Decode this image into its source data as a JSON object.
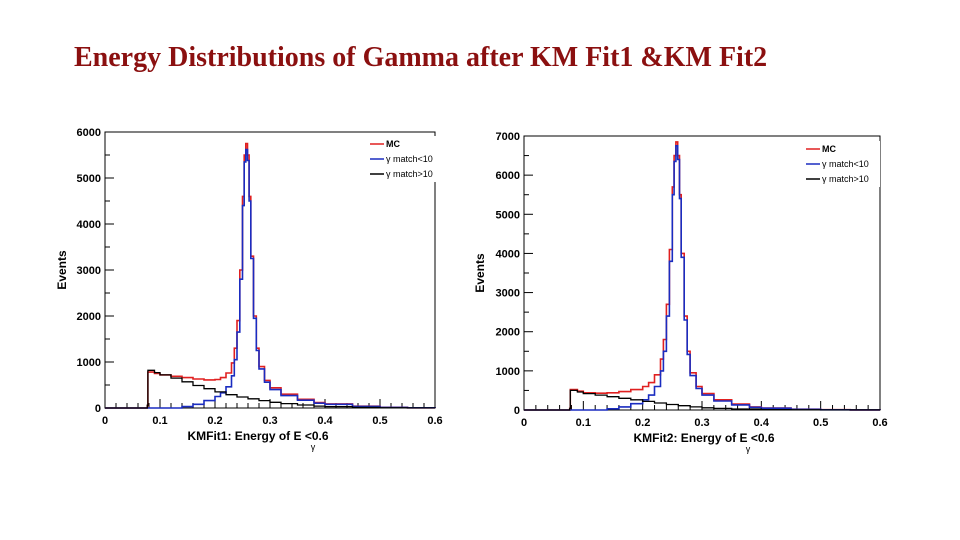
{
  "title": "Energy Distributions of Gamma after KM Fit1 &KM Fit2",
  "colors": {
    "title": "#8b1010",
    "mc": "#e02020",
    "match_lt10": "#1a2cc0",
    "match_gt10": "#000000"
  },
  "chart_data": [
    {
      "type": "line",
      "name": "kmfit1",
      "xlabel": "KMFit1:  Energy of E  <0.6",
      "xlabel_subscript": "γ",
      "ylabel": "Events",
      "xlim": [
        0,
        0.6
      ],
      "ylim": [
        0,
        6000
      ],
      "xticks": [
        0,
        0.1,
        0.2,
        0.3,
        0.4,
        0.5,
        0.6
      ],
      "xtick_labels": [
        "0",
        "0.1",
        "0.2",
        "0.3",
        "0.4",
        "0.5",
        "0.6"
      ],
      "yticks": [
        0,
        1000,
        2000,
        3000,
        4000,
        5000,
        6000
      ],
      "ytick_labels": [
        "0",
        "1000",
        "2000",
        "3000",
        "4000",
        "5000",
        "6000"
      ],
      "legend_position": "top-right",
      "series": [
        {
          "name": "MC",
          "legend_label": "MC",
          "color": "#e02020",
          "points": [
            [
              0,
              0
            ],
            [
              0.075,
              0
            ],
            [
              0.077,
              50
            ],
            [
              0.078,
              780
            ],
            [
              0.09,
              750
            ],
            [
              0.1,
              720
            ],
            [
              0.12,
              690
            ],
            [
              0.14,
              660
            ],
            [
              0.16,
              630
            ],
            [
              0.18,
              610
            ],
            [
              0.2,
              620
            ],
            [
              0.21,
              660
            ],
            [
              0.22,
              760
            ],
            [
              0.23,
              980
            ],
            [
              0.235,
              1300
            ],
            [
              0.24,
              1900
            ],
            [
              0.245,
              3000
            ],
            [
              0.25,
              4600
            ],
            [
              0.253,
              5500
            ],
            [
              0.256,
              5750
            ],
            [
              0.259,
              5500
            ],
            [
              0.262,
              4600
            ],
            [
              0.265,
              3300
            ],
            [
              0.27,
              2000
            ],
            [
              0.275,
              1300
            ],
            [
              0.28,
              900
            ],
            [
              0.29,
              600
            ],
            [
              0.3,
              440
            ],
            [
              0.32,
              300
            ],
            [
              0.35,
              190
            ],
            [
              0.38,
              120
            ],
            [
              0.4,
              90
            ],
            [
              0.45,
              40
            ],
            [
              0.5,
              15
            ],
            [
              0.55,
              5
            ],
            [
              0.6,
              0
            ]
          ]
        },
        {
          "name": "γ match<10",
          "legend_label": "γ match<10",
          "color": "#1a2cc0",
          "points": [
            [
              0,
              0
            ],
            [
              0.12,
              0
            ],
            [
              0.14,
              30
            ],
            [
              0.16,
              80
            ],
            [
              0.18,
              160
            ],
            [
              0.2,
              250
            ],
            [
              0.21,
              330
            ],
            [
              0.22,
              460
            ],
            [
              0.23,
              700
            ],
            [
              0.235,
              1050
            ],
            [
              0.24,
              1650
            ],
            [
              0.245,
              2800
            ],
            [
              0.25,
              4400
            ],
            [
              0.253,
              5350
            ],
            [
              0.256,
              5620
            ],
            [
              0.259,
              5380
            ],
            [
              0.262,
              4500
            ],
            [
              0.265,
              3250
            ],
            [
              0.27,
              1950
            ],
            [
              0.275,
              1250
            ],
            [
              0.28,
              850
            ],
            [
              0.29,
              560
            ],
            [
              0.3,
              400
            ],
            [
              0.32,
              270
            ],
            [
              0.35,
              170
            ],
            [
              0.38,
              105
            ],
            [
              0.4,
              80
            ],
            [
              0.45,
              35
            ],
            [
              0.5,
              12
            ],
            [
              0.55,
              4
            ],
            [
              0.6,
              0
            ]
          ]
        },
        {
          "name": "γ match>10",
          "legend_label": "γ match>10",
          "color": "#000000",
          "points": [
            [
              0,
              0
            ],
            [
              0.075,
              0
            ],
            [
              0.077,
              60
            ],
            [
              0.078,
              820
            ],
            [
              0.09,
              770
            ],
            [
              0.1,
              720
            ],
            [
              0.12,
              650
            ],
            [
              0.14,
              570
            ],
            [
              0.16,
              490
            ],
            [
              0.18,
              420
            ],
            [
              0.2,
              350
            ],
            [
              0.22,
              290
            ],
            [
              0.24,
              240
            ],
            [
              0.26,
              200
            ],
            [
              0.28,
              160
            ],
            [
              0.3,
              125
            ],
            [
              0.32,
              95
            ],
            [
              0.35,
              65
            ],
            [
              0.38,
              42
            ],
            [
              0.4,
              30
            ],
            [
              0.45,
              14
            ],
            [
              0.5,
              5
            ],
            [
              0.55,
              2
            ],
            [
              0.6,
              0
            ]
          ]
        }
      ]
    },
    {
      "type": "line",
      "name": "kmfit2",
      "xlabel": "KMFit2:  Energy of E  <0.6",
      "xlabel_subscript": "γ",
      "ylabel": "Events",
      "xlim": [
        0,
        0.6
      ],
      "ylim": [
        0,
        7000
      ],
      "xticks": [
        0,
        0.1,
        0.2,
        0.3,
        0.4,
        0.5,
        0.6
      ],
      "xtick_labels": [
        "0",
        "0.1",
        "0.2",
        "0.3",
        "0.4",
        "0.5",
        "0.6"
      ],
      "yticks": [
        0,
        1000,
        2000,
        3000,
        4000,
        5000,
        6000,
        7000
      ],
      "ytick_labels": [
        "0",
        "1000",
        "2000",
        "3000",
        "4000",
        "5000",
        "6000",
        "7000"
      ],
      "legend_position": "top-right",
      "series": [
        {
          "name": "MC",
          "legend_label": "MC",
          "color": "#e02020",
          "points": [
            [
              0,
              0
            ],
            [
              0.075,
              0
            ],
            [
              0.077,
              40
            ],
            [
              0.078,
              520
            ],
            [
              0.09,
              480
            ],
            [
              0.1,
              440
            ],
            [
              0.12,
              430
            ],
            [
              0.14,
              440
            ],
            [
              0.16,
              470
            ],
            [
              0.18,
              520
            ],
            [
              0.2,
              600
            ],
            [
              0.21,
              700
            ],
            [
              0.22,
              900
            ],
            [
              0.23,
              1300
            ],
            [
              0.235,
              1800
            ],
            [
              0.24,
              2700
            ],
            [
              0.245,
              4100
            ],
            [
              0.25,
              5700
            ],
            [
              0.253,
              6500
            ],
            [
              0.256,
              6850
            ],
            [
              0.259,
              6500
            ],
            [
              0.262,
              5500
            ],
            [
              0.265,
              4000
            ],
            [
              0.27,
              2400
            ],
            [
              0.275,
              1500
            ],
            [
              0.28,
              950
            ],
            [
              0.29,
              600
            ],
            [
              0.3,
              420
            ],
            [
              0.32,
              260
            ],
            [
              0.35,
              150
            ],
            [
              0.38,
              80
            ],
            [
              0.4,
              50
            ],
            [
              0.45,
              20
            ],
            [
              0.5,
              8
            ],
            [
              0.55,
              3
            ],
            [
              0.6,
              0
            ]
          ]
        },
        {
          "name": "γ match<10",
          "legend_label": "γ match<10",
          "color": "#1a2cc0",
          "points": [
            [
              0,
              0
            ],
            [
              0.12,
              0
            ],
            [
              0.14,
              30
            ],
            [
              0.16,
              80
            ],
            [
              0.18,
              160
            ],
            [
              0.2,
              260
            ],
            [
              0.21,
              380
            ],
            [
              0.22,
              600
            ],
            [
              0.23,
              1000
            ],
            [
              0.235,
              1500
            ],
            [
              0.24,
              2400
            ],
            [
              0.245,
              3800
            ],
            [
              0.25,
              5500
            ],
            [
              0.253,
              6350
            ],
            [
              0.256,
              6750
            ],
            [
              0.259,
              6400
            ],
            [
              0.262,
              5400
            ],
            [
              0.265,
              3900
            ],
            [
              0.27,
              2300
            ],
            [
              0.275,
              1420
            ],
            [
              0.28,
              880
            ],
            [
              0.29,
              550
            ],
            [
              0.3,
              380
            ],
            [
              0.32,
              230
            ],
            [
              0.35,
              130
            ],
            [
              0.38,
              70
            ],
            [
              0.4,
              45
            ],
            [
              0.45,
              17
            ],
            [
              0.5,
              6
            ],
            [
              0.55,
              2
            ],
            [
              0.6,
              0
            ]
          ]
        },
        {
          "name": "γ match>10",
          "legend_label": "γ match>10",
          "color": "#000000",
          "points": [
            [
              0,
              0
            ],
            [
              0.075,
              0
            ],
            [
              0.077,
              40
            ],
            [
              0.078,
              500
            ],
            [
              0.09,
              460
            ],
            [
              0.1,
              420
            ],
            [
              0.12,
              380
            ],
            [
              0.14,
              340
            ],
            [
              0.16,
              300
            ],
            [
              0.18,
              260
            ],
            [
              0.2,
              220
            ],
            [
              0.22,
              180
            ],
            [
              0.24,
              140
            ],
            [
              0.26,
              110
            ],
            [
              0.28,
              80
            ],
            [
              0.3,
              55
            ],
            [
              0.32,
              40
            ],
            [
              0.35,
              25
            ],
            [
              0.4,
              10
            ],
            [
              0.45,
              4
            ],
            [
              0.5,
              2
            ],
            [
              0.6,
              0
            ]
          ]
        }
      ]
    }
  ]
}
